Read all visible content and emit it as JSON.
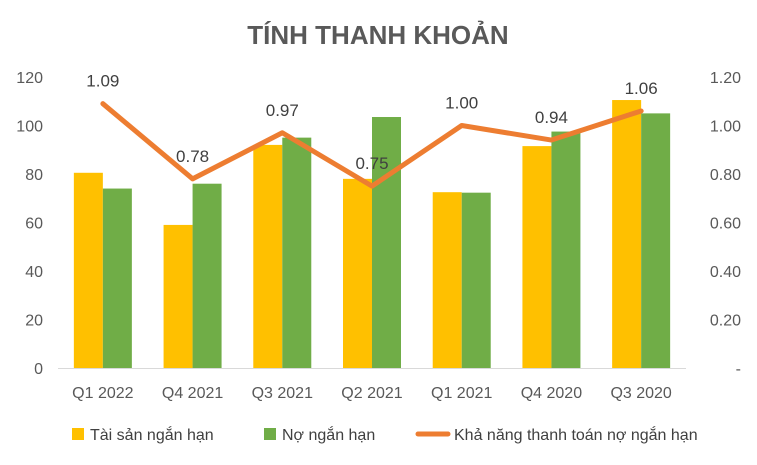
{
  "chart_data": {
    "type": "bar",
    "title": "TÍNH THANH KHOẢN",
    "categories": [
      "Q1 2022",
      "Q4 2021",
      "Q3 2021",
      "Q2 2021",
      "Q1 2021",
      "Q4 2020",
      "Q3 2020"
    ],
    "series": [
      {
        "name": "Tài sản ngắn hạn",
        "type": "bar",
        "axis": "left",
        "color": "#FFC000",
        "values": [
          80.5,
          59,
          92,
          78,
          72.5,
          91.5,
          110.5
        ]
      },
      {
        "name": "Nợ ngắn hạn",
        "type": "bar",
        "axis": "left",
        "color": "#70AD47",
        "values": [
          74,
          76,
          95,
          103.5,
          72.3,
          97.5,
          105
        ]
      },
      {
        "name": "Khả năng thanh toán nợ ngắn hạn",
        "type": "line",
        "axis": "right",
        "color": "#ED7D31",
        "values": [
          1.09,
          0.78,
          0.97,
          0.75,
          1.0,
          0.94,
          1.06
        ],
        "labels": [
          "1.09",
          "0.78",
          "0.97",
          "0.75",
          "1.00",
          "0.94",
          "1.06"
        ]
      }
    ],
    "y_left": {
      "ylim": [
        0,
        120
      ],
      "ticks": [
        "0",
        "20",
        "40",
        "60",
        "80",
        "100",
        "120"
      ]
    },
    "y_right": {
      "ylim": [
        0,
        1.2
      ],
      "ticks": [
        "-",
        "0.20",
        "0.40",
        "0.60",
        "0.80",
        "1.00",
        "1.20"
      ]
    },
    "grid": false,
    "legend": "bottom"
  }
}
